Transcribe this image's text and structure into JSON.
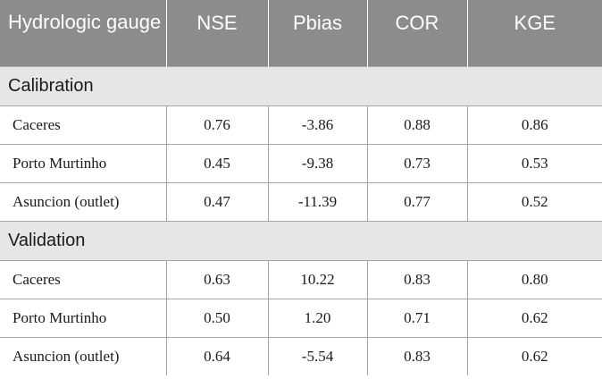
{
  "table": {
    "headers": [
      "Hydrologic gauge",
      "NSE",
      "Pbias",
      "COR",
      "KGE"
    ],
    "sections": [
      {
        "label": "Calibration",
        "rows": [
          [
            "Caceres",
            "0.76",
            "-3.86",
            "0.88",
            "0.86"
          ],
          [
            "Porto Murtinho",
            "0.45",
            "-9.38",
            "0.73",
            "0.53"
          ],
          [
            "Asuncion (outlet)",
            "0.47",
            "-11.39",
            "0.77",
            "0.52"
          ]
        ]
      },
      {
        "label": "Validation",
        "rows": [
          [
            "Caceres",
            "0.63",
            "10.22",
            "0.83",
            "0.80"
          ],
          [
            "Porto Murtinho",
            "0.50",
            "1.20",
            "0.71",
            "0.62"
          ],
          [
            "Asuncion (outlet)",
            "0.64",
            "-5.54",
            "0.83",
            "0.62"
          ]
        ]
      }
    ]
  }
}
